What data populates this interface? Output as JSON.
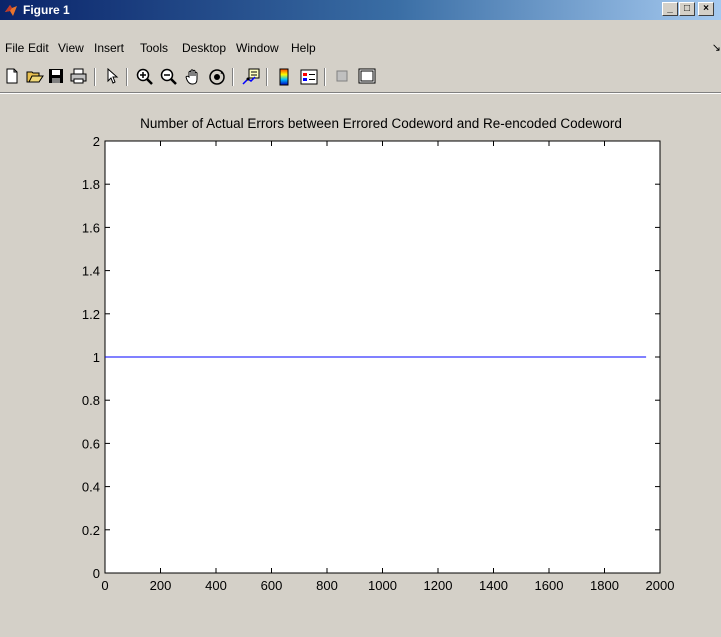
{
  "window": {
    "title": "Figure 1",
    "min_label": "_",
    "max_label": "□",
    "close_label": "×"
  },
  "menubar": {
    "items": [
      "File",
      "Edit",
      "View",
      "Insert",
      "Tools",
      "Desktop",
      "Window",
      "Help"
    ],
    "overflow_arrow": "↘"
  },
  "toolbar": {
    "buttons": [
      "new-figure-icon",
      "open-file-icon",
      "save-icon",
      "print-icon",
      "edit-plot-arrow-icon",
      "zoom-in-icon",
      "zoom-out-icon",
      "pan-hand-icon",
      "rotate-3d-icon",
      "data-cursor-icon",
      "insert-colorbar-icon",
      "insert-legend-icon",
      "hide-plot-tools-icon",
      "show-plot-tools-icon"
    ]
  },
  "colors": {
    "line": "#0000ff",
    "background": "#d4d0c8",
    "axes_bg": "#ffffff"
  },
  "chart_data": {
    "type": "line",
    "title": "Number of Actual Errors between Errored Codeword and Re-encoded Codeword",
    "xlabel": "",
    "ylabel": "",
    "xlim": [
      0,
      2000
    ],
    "ylim": [
      0,
      2
    ],
    "xticks": [
      "0",
      "200",
      "400",
      "600",
      "800",
      "1000",
      "1200",
      "1400",
      "1600",
      "1800",
      "2000"
    ],
    "yticks": [
      "0",
      "0.2",
      "0.4",
      "0.6",
      "0.8",
      "1",
      "1.2",
      "1.4",
      "1.6",
      "1.8",
      "2"
    ],
    "grid": false,
    "series": [
      {
        "x": [
          0,
          1950
        ],
        "y": [
          1,
          1
        ]
      }
    ]
  }
}
